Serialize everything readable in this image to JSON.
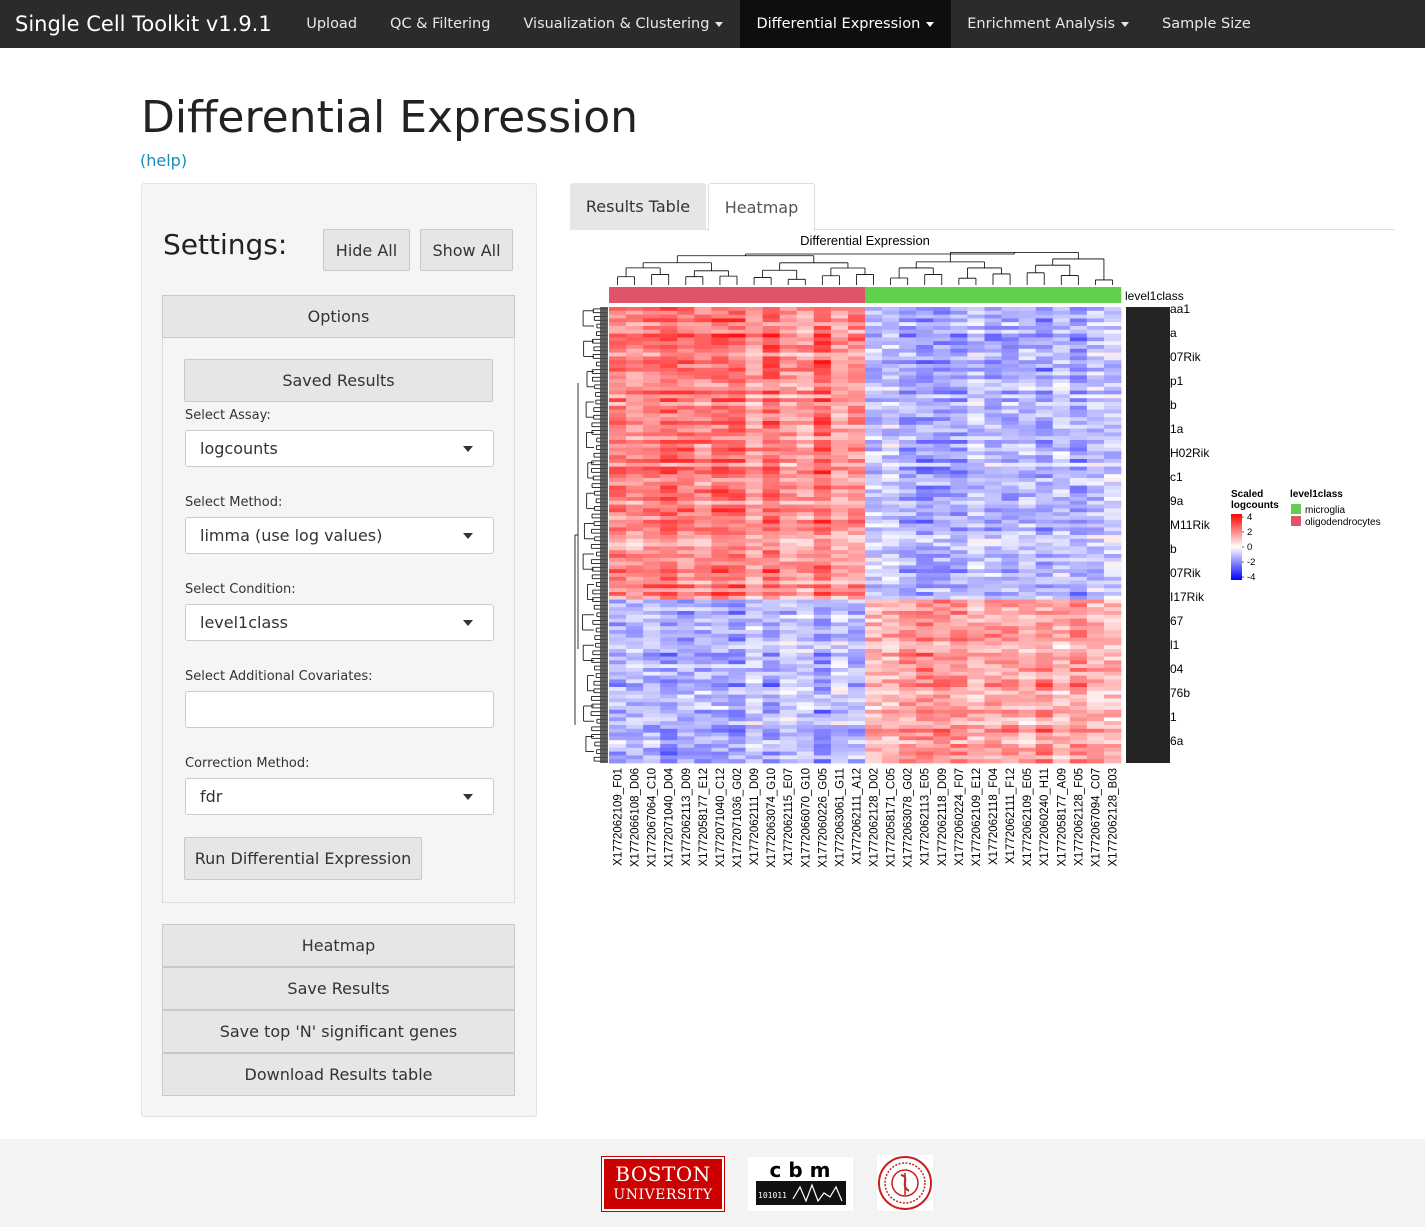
{
  "navbar": {
    "brand": "Single Cell Toolkit v1.9.1",
    "items": [
      {
        "label": "Upload",
        "dropdown": false,
        "active": false
      },
      {
        "label": "QC & Filtering",
        "dropdown": false,
        "active": false
      },
      {
        "label": "Visualization & Clustering",
        "dropdown": true,
        "active": false
      },
      {
        "label": "Differential Expression",
        "dropdown": true,
        "active": true
      },
      {
        "label": "Enrichment Analysis",
        "dropdown": true,
        "active": false
      },
      {
        "label": "Sample Size",
        "dropdown": false,
        "active": false
      }
    ]
  },
  "page": {
    "title": "Differential Expression",
    "help": "(help)"
  },
  "sidebar": {
    "settings_title": "Settings:",
    "hide_all": "Hide All",
    "show_all": "Show All",
    "options_header": "Options",
    "saved_results": "Saved Results",
    "assay_label": "Select Assay:",
    "assay_value": "logcounts",
    "method_label": "Select Method:",
    "method_value": "limma (use log values)",
    "condition_label": "Select Condition:",
    "condition_value": "level1class",
    "covariates_label": "Select Additional Covariates:",
    "covariates_value": "",
    "correction_label": "Correction Method:",
    "correction_value": "fdr",
    "run_button": "Run Differential Expression",
    "sections": [
      "Heatmap",
      "Save Results",
      "Save top 'N' significant genes",
      "Download Results table"
    ]
  },
  "tabs": {
    "results_table": "Results Table",
    "heatmap": "Heatmap"
  },
  "chart_data": {
    "type": "heatmap",
    "title": "Differential Expression",
    "annotation_label": "level1class",
    "legend_scale": {
      "title_line1": "Scaled",
      "title_line2": "logcounts",
      "ticks": [
        "4",
        "2",
        "0",
        "-2",
        "-4"
      ],
      "colors": {
        "high": "#ff0000",
        "mid": "#ffffff",
        "low": "#0000ff"
      }
    },
    "legend_annotation": {
      "title": "level1class",
      "entries": [
        {
          "name": "microglia",
          "color": "#61d04f"
        },
        {
          "name": "oligodendrocytes",
          "color": "#df536b"
        }
      ]
    },
    "columns": [
      "X1772062109_F01",
      "X1772066108_D06",
      "X1772067064_C10",
      "X1772071040_D04",
      "X1772062113_D09",
      "X1772058177_E12",
      "X1772071040_C12",
      "X1772071036_G02",
      "X1772062111_D09",
      "X1772063074_G10",
      "X1772062115_E07",
      "X1772066070_G10",
      "X1772060226_G05",
      "X1772063061_G11",
      "X1772062111_A12",
      "X1772062128_D02",
      "X1772058171_C05",
      "X1772063078_G02",
      "X1772062113_E05",
      "X1772062118_D09",
      "X1772060224_F07",
      "X1772062109_E12",
      "X1772062118_F04",
      "X1772062111_F12",
      "X1772062109_E05",
      "X1772060240_H11",
      "X1772058177_A09",
      "X1772062128_F05",
      "X1772067094_C07",
      "X1772062128_B03"
    ],
    "column_groups": [
      "oligodendrocytes",
      "oligodendrocytes",
      "oligodendrocytes",
      "oligodendrocytes",
      "oligodendrocytes",
      "oligodendrocytes",
      "oligodendrocytes",
      "oligodendrocytes",
      "oligodendrocytes",
      "oligodendrocytes",
      "oligodendrocytes",
      "oligodendrocytes",
      "oligodendrocytes",
      "oligodendrocytes",
      "oligodendrocytes",
      "microglia",
      "microglia",
      "microglia",
      "microglia",
      "microglia",
      "microglia",
      "microglia",
      "microglia",
      "microglia",
      "microglia",
      "microglia",
      "microglia",
      "microglia",
      "microglia",
      "microglia"
    ],
    "row_labels_visible": [
      "aa1",
      "a",
      "07Rik",
      "p1",
      "b",
      "1a",
      "H02Rik",
      "c1",
      "9a",
      "M11Rik",
      "b",
      "07Rik",
      "I17Rik",
      "67",
      "l1",
      "04",
      "76b",
      "1",
      "6a"
    ]
  },
  "footer": {
    "bu_line1": "BOSTON",
    "bu_line2": "UNIVERSITY",
    "cbm_text": "c b m",
    "cbm_sub": "101011"
  }
}
